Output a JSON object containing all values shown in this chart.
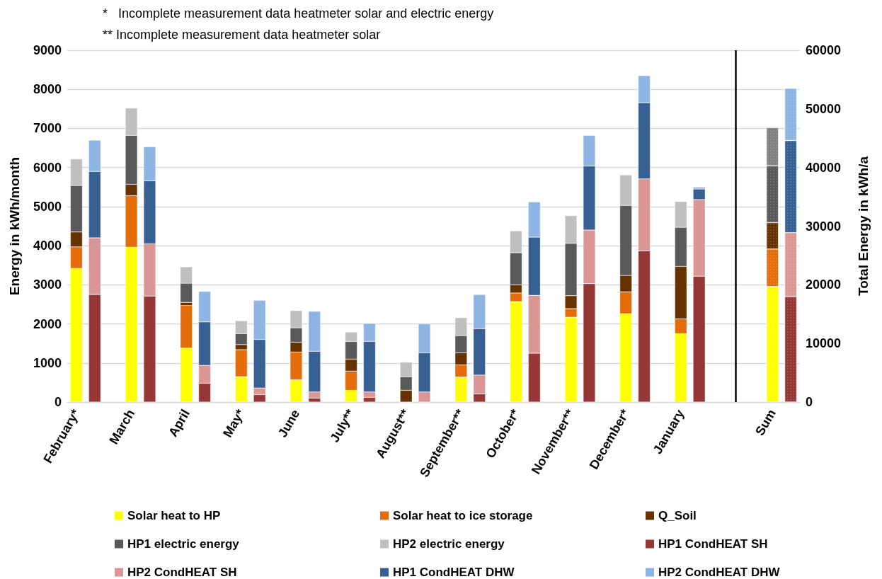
{
  "chart_data": {
    "type": "bar",
    "stacked": true,
    "annotations": [
      "*   Incomplete measurement data heatmeter solar and electric energy",
      "** Incomplete measurement data heatmeter solar"
    ],
    "ylabel": "Energy in kWh/month",
    "y2label": "Total Energy in kWh/a",
    "categories": [
      "February*",
      null,
      null,
      "March",
      null,
      null,
      "April",
      null,
      null,
      "May*",
      null,
      null,
      "June",
      null,
      null,
      "July**",
      null,
      null,
      "August**",
      null,
      null,
      "September**",
      null,
      null,
      "October*",
      null,
      null,
      "November**",
      null,
      null,
      "December*",
      null,
      null,
      "January",
      null,
      null,
      null,
      null,
      "Sum",
      null
    ],
    "ylim": [
      0,
      9000
    ],
    "yticks": [
      0,
      1000,
      2000,
      3000,
      4000,
      5000,
      6000,
      7000,
      8000,
      9000
    ],
    "y2lim": [
      0,
      60000
    ],
    "y2ticks": [
      0,
      10000,
      20000,
      30000,
      40000,
      50000,
      60000
    ],
    "grid": "y",
    "legend": "bottom",
    "series": [
      {
        "name": "Solar heat to HP",
        "color": "#ffff00",
        "values": [
          3420,
          null,
          null,
          3960,
          null,
          null,
          1380,
          null,
          null,
          650,
          null,
          null,
          570,
          null,
          null,
          300,
          null,
          null,
          0,
          null,
          null,
          640,
          null,
          null,
          2570,
          null,
          null,
          2170,
          null,
          null,
          2260,
          null,
          null,
          1750,
          null,
          null,
          null,
          null,
          null,
          null
        ]
      },
      {
        "name": "Solar heat to ice storage",
        "color": "#e46c0a",
        "values": [
          550,
          null,
          null,
          1320,
          null,
          null,
          1090,
          null,
          null,
          690,
          null,
          null,
          710,
          null,
          null,
          490,
          null,
          null,
          0,
          null,
          null,
          310,
          null,
          null,
          220,
          null,
          null,
          220,
          null,
          null,
          560,
          null,
          null,
          380,
          null,
          null,
          null,
          null,
          null,
          null
        ]
      },
      {
        "name": "Q_Soil",
        "color": "#663300",
        "values": [
          380,
          null,
          null,
          290,
          null,
          null,
          80,
          null,
          null,
          130,
          null,
          null,
          250,
          null,
          null,
          310,
          null,
          null,
          300,
          null,
          null,
          310,
          null,
          null,
          210,
          null,
          null,
          330,
          null,
          null,
          420,
          null,
          null,
          1340,
          null,
          null,
          null,
          null,
          null,
          null
        ]
      },
      {
        "name": "HP1 electric energy",
        "color": "#595959",
        "values": [
          1190,
          null,
          null,
          1250,
          null,
          null,
          490,
          null,
          null,
          280,
          null,
          null,
          370,
          null,
          null,
          450,
          null,
          null,
          350,
          null,
          null,
          440,
          null,
          null,
          820,
          null,
          null,
          1340,
          null,
          null,
          1790,
          null,
          null,
          1000,
          null,
          null,
          null,
          null,
          null,
          null
        ]
      },
      {
        "name": "HP2 electric energy",
        "color": "#bfbfbf",
        "values": [
          680,
          null,
          null,
          700,
          null,
          null,
          420,
          null,
          null,
          330,
          null,
          null,
          440,
          null,
          null,
          240,
          null,
          null,
          370,
          null,
          null,
          460,
          null,
          null,
          560,
          null,
          null,
          710,
          null,
          null,
          780,
          null,
          null,
          660,
          null,
          null,
          null,
          null,
          null,
          null
        ]
      },
      {
        "name": "HP1 CondHEAT SH",
        "color": "#953735",
        "values": [
          null,
          2750,
          null,
          null,
          2710,
          null,
          null,
          480,
          null,
          null,
          190,
          null,
          null,
          100,
          null,
          null,
          120,
          null,
          null,
          0,
          null,
          null,
          210,
          null,
          null,
          1250,
          null,
          null,
          3030,
          null,
          null,
          3870,
          null,
          null,
          3220,
          null,
          null,
          null,
          null,
          null
        ]
      },
      {
        "name": "HP2 CondHEAT SH",
        "color": "#d99694",
        "values": [
          null,
          1450,
          null,
          null,
          1340,
          null,
          null,
          460,
          null,
          null,
          170,
          null,
          null,
          160,
          null,
          null,
          140,
          null,
          null,
          260,
          null,
          null,
          480,
          null,
          null,
          1480,
          null,
          null,
          1370,
          null,
          null,
          1840,
          null,
          null,
          1960,
          null,
          null,
          null,
          null,
          null
        ]
      },
      {
        "name": "HP1 CondHEAT DHW",
        "color": "#366092",
        "values": [
          null,
          1700,
          null,
          null,
          1610,
          null,
          null,
          1110,
          null,
          null,
          1240,
          null,
          null,
          1040,
          null,
          null,
          1290,
          null,
          null,
          1000,
          null,
          null,
          1190,
          null,
          null,
          1490,
          null,
          null,
          1640,
          null,
          null,
          1950,
          null,
          null,
          270,
          null,
          null,
          null,
          null,
          null
        ]
      },
      {
        "name": "HP2 CondHEAT DHW",
        "color": "#8db4e2",
        "values": [
          null,
          800,
          null,
          null,
          870,
          null,
          null,
          780,
          null,
          null,
          1000,
          null,
          null,
          1020,
          null,
          null,
          460,
          null,
          null,
          740,
          null,
          null,
          870,
          null,
          null,
          900,
          null,
          null,
          780,
          null,
          null,
          690,
          null,
          null,
          50,
          null,
          null,
          null,
          null,
          null
        ]
      },
      {
        "axis": "y2",
        "color": "#ffff00",
        "values": [
          null,
          null,
          null,
          null,
          null,
          null,
          null,
          null,
          null,
          null,
          null,
          null,
          null,
          null,
          null,
          null,
          null,
          null,
          null,
          null,
          null,
          null,
          null,
          null,
          null,
          null,
          null,
          null,
          null,
          null,
          null,
          null,
          null,
          null,
          null,
          null,
          null,
          null,
          19700,
          null
        ]
      },
      {
        "axis": "y2",
        "color": "#e46c0a",
        "values": [
          null,
          null,
          null,
          null,
          null,
          null,
          null,
          null,
          null,
          null,
          null,
          null,
          null,
          null,
          null,
          null,
          null,
          null,
          null,
          null,
          null,
          null,
          null,
          null,
          null,
          null,
          null,
          null,
          null,
          null,
          null,
          null,
          null,
          null,
          null,
          null,
          null,
          null,
          6400,
          null
        ]
      },
      {
        "axis": "y2",
        "color": "#663300",
        "values": [
          null,
          null,
          null,
          null,
          null,
          null,
          null,
          null,
          null,
          null,
          null,
          null,
          null,
          null,
          null,
          null,
          null,
          null,
          null,
          null,
          null,
          null,
          null,
          null,
          null,
          null,
          null,
          null,
          null,
          null,
          null,
          null,
          null,
          null,
          null,
          null,
          null,
          null,
          4500,
          null
        ]
      },
      {
        "axis": "y2",
        "color": "#595959",
        "values": [
          null,
          null,
          null,
          null,
          null,
          null,
          null,
          null,
          null,
          null,
          null,
          null,
          null,
          null,
          null,
          null,
          null,
          null,
          null,
          null,
          null,
          null,
          null,
          null,
          null,
          null,
          null,
          null,
          null,
          null,
          null,
          null,
          null,
          null,
          null,
          null,
          null,
          null,
          9700,
          null
        ]
      },
      {
        "axis": "y2",
        "color": "#808080",
        "values": [
          null,
          null,
          null,
          null,
          null,
          null,
          null,
          null,
          null,
          null,
          null,
          null,
          null,
          null,
          null,
          null,
          null,
          null,
          null,
          null,
          null,
          null,
          null,
          null,
          null,
          null,
          null,
          null,
          null,
          null,
          null,
          null,
          null,
          null,
          null,
          null,
          null,
          null,
          6500,
          null
        ]
      },
      {
        "axis": "y2",
        "color": "#953735",
        "values": [
          null,
          null,
          null,
          null,
          null,
          null,
          null,
          null,
          null,
          null,
          null,
          null,
          null,
          null,
          null,
          null,
          null,
          null,
          null,
          null,
          null,
          null,
          null,
          null,
          null,
          null,
          null,
          null,
          null,
          null,
          null,
          null,
          null,
          null,
          null,
          null,
          null,
          null,
          null,
          18000
        ]
      },
      {
        "axis": "y2",
        "color": "#d99694",
        "values": [
          null,
          null,
          null,
          null,
          null,
          null,
          null,
          null,
          null,
          null,
          null,
          null,
          null,
          null,
          null,
          null,
          null,
          null,
          null,
          null,
          null,
          null,
          null,
          null,
          null,
          null,
          null,
          null,
          null,
          null,
          null,
          null,
          null,
          null,
          null,
          null,
          null,
          null,
          null,
          10900
        ]
      },
      {
        "axis": "y2",
        "color": "#366092",
        "values": [
          null,
          null,
          null,
          null,
          null,
          null,
          null,
          null,
          null,
          null,
          null,
          null,
          null,
          null,
          null,
          null,
          null,
          null,
          null,
          null,
          null,
          null,
          null,
          null,
          null,
          null,
          null,
          null,
          null,
          null,
          null,
          null,
          null,
          null,
          null,
          null,
          null,
          null,
          null,
          15700
        ]
      },
      {
        "axis": "y2",
        "color": "#8db4e2",
        "values": [
          null,
          null,
          null,
          null,
          null,
          null,
          null,
          null,
          null,
          null,
          null,
          null,
          null,
          null,
          null,
          null,
          null,
          null,
          null,
          null,
          null,
          null,
          null,
          null,
          null,
          null,
          null,
          null,
          null,
          null,
          null,
          null,
          null,
          null,
          null,
          null,
          null,
          null,
          null,
          8900
        ]
      }
    ]
  }
}
